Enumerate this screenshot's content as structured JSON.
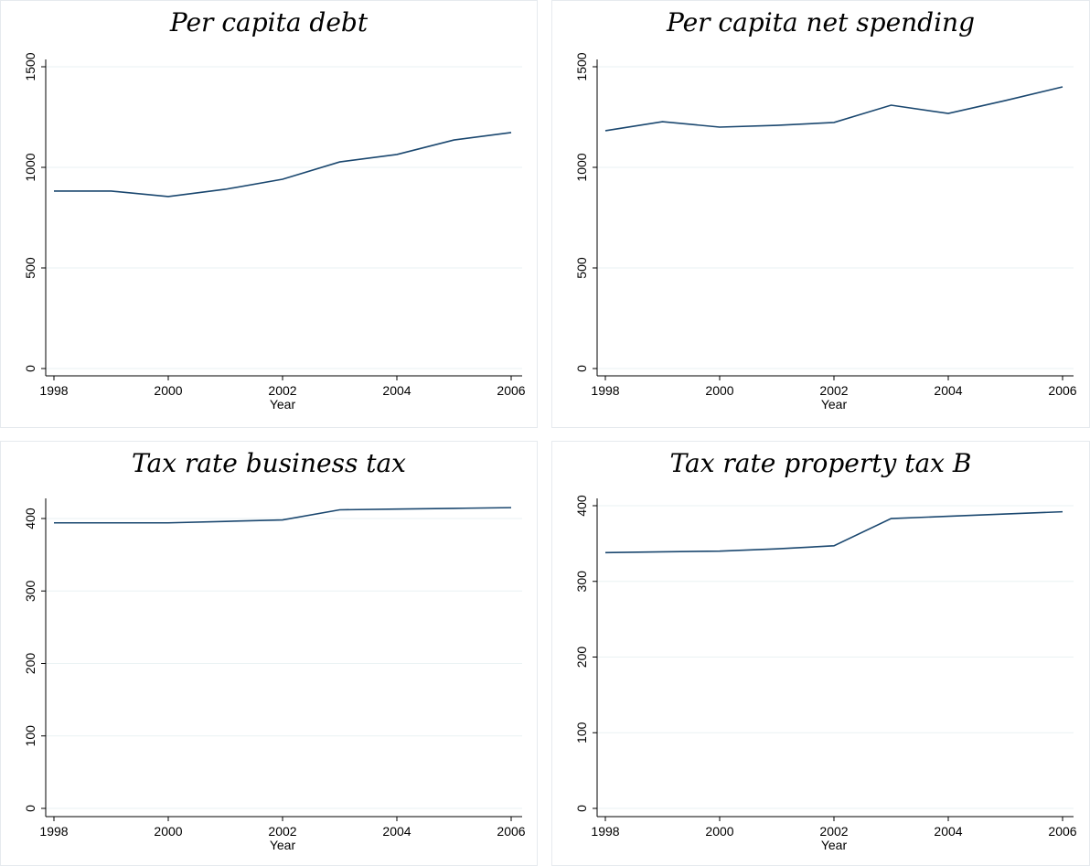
{
  "chart_data": [
    {
      "type": "line",
      "title": "Per capita debt",
      "xlabel": "Year",
      "x": [
        1998,
        1999,
        2000,
        2001,
        2002,
        2003,
        2004,
        2005,
        2006
      ],
      "values": [
        882,
        882,
        855,
        891,
        941,
        1027,
        1064,
        1136,
        1173
      ],
      "color": "#1a476f",
      "xlim": [
        1998,
        2006
      ],
      "ylim": [
        0,
        1500
      ],
      "xticks": [
        1998,
        2000,
        2002,
        2004,
        2006
      ],
      "yticks": [
        0,
        500,
        1000,
        1500
      ],
      "grid": true
    },
    {
      "type": "line",
      "title": "Per capita net spending",
      "xlabel": "Year",
      "x": [
        1998,
        1999,
        2000,
        2001,
        2002,
        2003,
        2004,
        2005,
        2006
      ],
      "values": [
        1182,
        1227,
        1200,
        1209,
        1223,
        1309,
        1268,
        1332,
        1400
      ],
      "color": "#1a476f",
      "xlim": [
        1998,
        2006
      ],
      "ylim": [
        0,
        1500
      ],
      "xticks": [
        1998,
        2000,
        2002,
        2004,
        2006
      ],
      "yticks": [
        0,
        500,
        1000,
        1500
      ],
      "grid": true
    },
    {
      "type": "line",
      "title": "Tax rate business tax",
      "xlabel": "Year",
      "x": [
        1998,
        1999,
        2000,
        2001,
        2002,
        2003,
        2004,
        2005,
        2006
      ],
      "values": [
        394,
        394,
        394,
        396,
        398,
        412,
        413,
        414,
        415
      ],
      "color": "#1a476f",
      "xlim": [
        1998,
        2006
      ],
      "ylim": [
        0,
        400
      ],
      "xticks": [
        1998,
        2000,
        2002,
        2004,
        2006
      ],
      "yticks": [
        0,
        100,
        200,
        300,
        400
      ],
      "grid": true
    },
    {
      "type": "line",
      "title": "Tax rate property tax B",
      "xlabel": "Year",
      "x": [
        1998,
        1999,
        2000,
        2001,
        2002,
        2003,
        2004,
        2005,
        2006
      ],
      "values": [
        338,
        339,
        340,
        343,
        347,
        383,
        386,
        389,
        392
      ],
      "color": "#1a476f",
      "xlim": [
        1998,
        2006
      ],
      "ylim": [
        0,
        400
      ],
      "xticks": [
        1998,
        2000,
        2002,
        2004,
        2006
      ],
      "yticks": [
        0,
        100,
        200,
        300,
        400
      ],
      "grid": true
    }
  ]
}
